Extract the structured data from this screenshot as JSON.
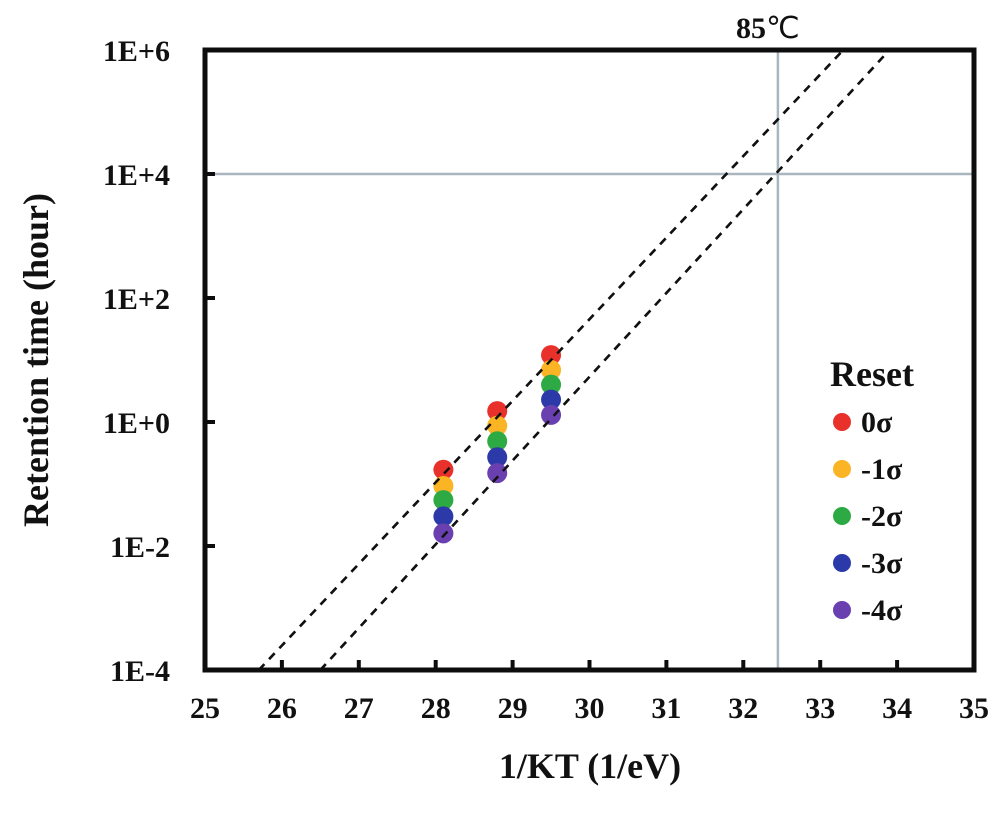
{
  "chart_data": {
    "type": "scatter",
    "title": "",
    "xlabel": "1/KT (1/eV)",
    "ylabel": "Retention time (hour)",
    "xlim": [
      25,
      35
    ],
    "ylim": [
      0.0001,
      1000000
    ],
    "yscale": "log",
    "x_ticks": [
      "25",
      "26",
      "27",
      "28",
      "29",
      "30",
      "31",
      "32",
      "33",
      "34",
      "35"
    ],
    "y_ticks": [
      "1E-4",
      "1E-2",
      "1E+0",
      "1E+2",
      "1E+4",
      "1E+6"
    ],
    "grid": false,
    "legend": {
      "title": "Reset",
      "position": "right-middle-inside"
    },
    "x": [
      28.1,
      28.8,
      29.5
    ],
    "series": [
      {
        "name": "0σ",
        "color": "#e8312a",
        "values": [
          0.17,
          1.5,
          12
        ]
      },
      {
        "name": "-1σ",
        "color": "#fbb424",
        "values": [
          0.093,
          0.87,
          6.9
        ]
      },
      {
        "name": "-2σ",
        "color": "#2eaa44",
        "values": [
          0.055,
          0.49,
          4.0
        ]
      },
      {
        "name": "-3σ",
        "color": "#2b3aa8",
        "values": [
          0.03,
          0.27,
          2.3
        ]
      },
      {
        "name": "-4σ",
        "color": "#6a3fb0",
        "values": [
          0.016,
          0.15,
          1.3
        ]
      }
    ],
    "fit_lines": [
      {
        "name": "upper-extrapolation",
        "style": "dashed",
        "color": "#111111",
        "points": [
          [
            25.7,
            0.0001
          ],
          [
            33.3,
            1000000
          ]
        ]
      },
      {
        "name": "lower-extrapolation",
        "style": "dashed",
        "color": "#111111",
        "points": [
          [
            26.5,
            0.0001
          ],
          [
            33.9,
            1000000
          ]
        ]
      }
    ],
    "reference_lines": [
      {
        "orientation": "vertical",
        "x": 32.45,
        "color": "#a9b6bf",
        "label": "85℃"
      },
      {
        "orientation": "horizontal",
        "y": 10000,
        "color": "#a9b6bf"
      }
    ],
    "annotations": [
      {
        "text": "85℃",
        "x": 32.45,
        "y": 1000000,
        "position": "above-plot"
      }
    ]
  }
}
